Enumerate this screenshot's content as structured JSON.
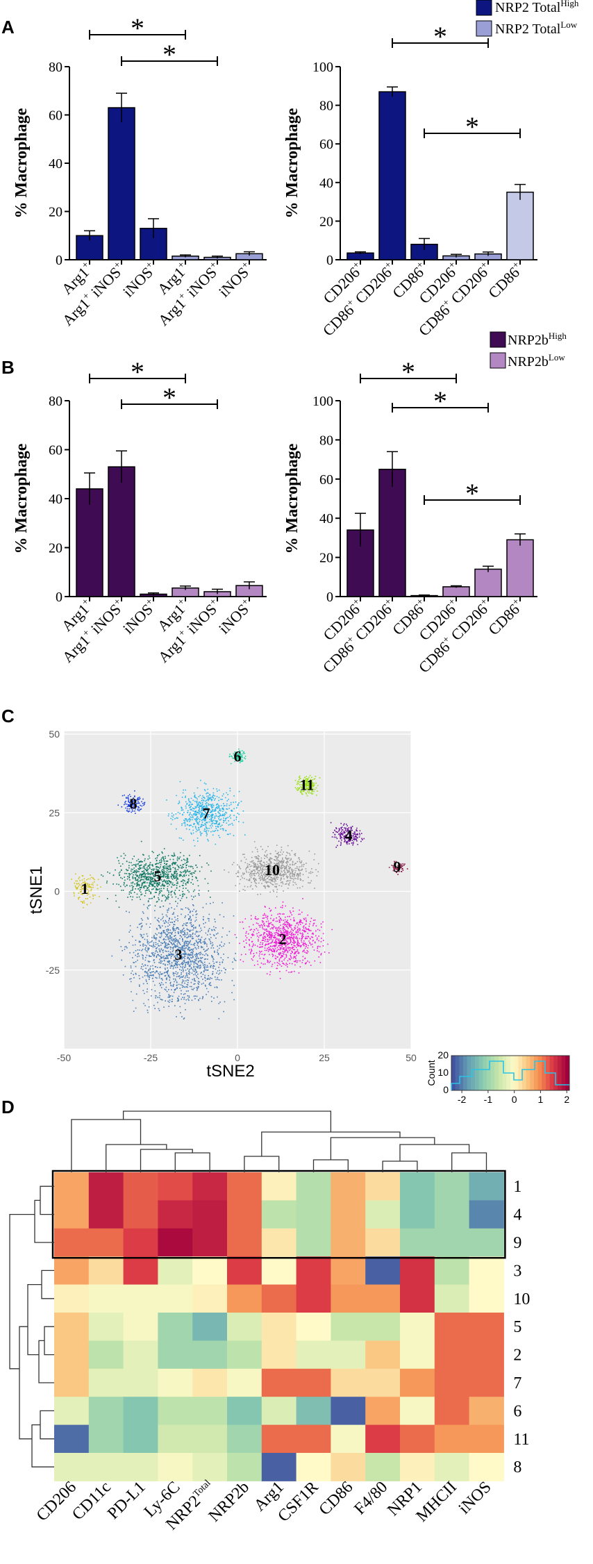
{
  "panel_labels": {
    "a": "A",
    "b": "B",
    "c": "C",
    "d": "D"
  },
  "colors": {
    "total_high": "#0d1680",
    "total_low": "#9a9fd6",
    "total_low_light": "#c5c9e8",
    "nrp2b_high": "#3f0c54",
    "nrp2b_low": "#b287c2"
  },
  "chart_data": [
    {
      "id": "A-left",
      "type": "bar",
      "ylabel": "% Macrophage",
      "ylim": [
        0,
        80
      ],
      "yticks": [
        "0",
        "20",
        "40",
        "60",
        "80"
      ],
      "categories": [
        {
          "pre": "Arg1",
          "sup": "+"
        },
        {
          "pre": "Arg1",
          "sup": "+",
          "post": " iNOS",
          "sup2": "+"
        },
        {
          "pre": "iNOS",
          "sup": "+"
        },
        {
          "pre": "Arg1",
          "sup": "+"
        },
        {
          "pre": "Arg1",
          "sup": "+",
          "post": " iNOS",
          "sup2": "+"
        },
        {
          "pre": "iNOS",
          "sup": "+"
        }
      ],
      "values": [
        10,
        63,
        13,
        1.5,
        1,
        2.5
      ],
      "errors": [
        2,
        6,
        4,
        0.5,
        0.5,
        0.8
      ],
      "groups": [
        "high",
        "high",
        "high",
        "low",
        "low",
        "low"
      ],
      "significance": [
        {
          "from": 0,
          "to": 3,
          "label": "*"
        },
        {
          "from": 1,
          "to": 4,
          "label": "*"
        }
      ]
    },
    {
      "id": "A-right",
      "type": "bar",
      "ylabel": "% Macrophage",
      "ylim": [
        0,
        100
      ],
      "yticks": [
        "0",
        "20",
        "40",
        "60",
        "80",
        "100"
      ],
      "categories": [
        {
          "pre": "CD206",
          "sup": "+"
        },
        {
          "pre": "CD86",
          "sup": "+",
          "post": " CD206",
          "sup2": "+"
        },
        {
          "pre": "CD86",
          "sup": "+"
        },
        {
          "pre": "CD206",
          "sup": "+"
        },
        {
          "pre": "CD86",
          "sup": "+",
          "post": " CD206",
          "sup2": "+"
        },
        {
          "pre": "CD86",
          "sup": "+"
        }
      ],
      "values": [
        3.5,
        87,
        8,
        2,
        3,
        35
      ],
      "errors": [
        0.6,
        2.5,
        3,
        0.8,
        1,
        4
      ],
      "groups": [
        "high",
        "high",
        "high",
        "low",
        "low",
        "lowlight"
      ],
      "significance": [
        {
          "from": 1,
          "to": 4,
          "label": "*"
        },
        {
          "from": 2,
          "to": 5,
          "label": "*"
        }
      ]
    },
    {
      "id": "B-left",
      "type": "bar",
      "ylabel": "% Macrophage",
      "ylim": [
        0,
        80
      ],
      "yticks": [
        "0",
        "20",
        "40",
        "60",
        "80"
      ],
      "categories": [
        {
          "pre": "Arg1",
          "sup": "+"
        },
        {
          "pre": "Arg1",
          "sup": "+",
          "post": " iNOS",
          "sup2": "+"
        },
        {
          "pre": "iNOS",
          "sup": "+"
        },
        {
          "pre": "Arg1",
          "sup": "+"
        },
        {
          "pre": "Arg1",
          "sup": "+",
          "post": " iNOS",
          "sup2": "+"
        },
        {
          "pre": "iNOS",
          "sup": "+"
        }
      ],
      "values": [
        44,
        53,
        1,
        3.5,
        2,
        4.5
      ],
      "errors": [
        6.5,
        6.5,
        0.5,
        0.8,
        1,
        1.5
      ],
      "groups": [
        "high",
        "high",
        "high",
        "low",
        "low",
        "low"
      ],
      "significance": [
        {
          "from": 0,
          "to": 3,
          "label": "*"
        },
        {
          "from": 1,
          "to": 4,
          "label": "*"
        }
      ]
    },
    {
      "id": "B-right",
      "type": "bar",
      "ylabel": "% Macrophage",
      "ylim": [
        0,
        100
      ],
      "yticks": [
        "0",
        "20",
        "40",
        "60",
        "80",
        "100"
      ],
      "categories": [
        {
          "pre": "CD206",
          "sup": "+"
        },
        {
          "pre": "CD86",
          "sup": "+",
          "post": " CD206",
          "sup2": "+"
        },
        {
          "pre": "CD86",
          "sup": "+"
        },
        {
          "pre": "CD206",
          "sup": "+"
        },
        {
          "pre": "CD86",
          "sup": "+",
          "post": " CD206",
          "sup2": "+"
        },
        {
          "pre": "CD86",
          "sup": "+"
        }
      ],
      "values": [
        34,
        65,
        0.5,
        5,
        14,
        29
      ],
      "errors": [
        8.5,
        9,
        0.3,
        0.5,
        1.5,
        3
      ],
      "groups": [
        "high",
        "high",
        "high",
        "low",
        "low",
        "low"
      ],
      "significance": [
        {
          "from": 0,
          "to": 3,
          "label": "*"
        },
        {
          "from": 1,
          "to": 4,
          "label": "*"
        },
        {
          "from": 2,
          "to": 5,
          "label": "*"
        }
      ]
    },
    {
      "id": "C",
      "type": "scatter",
      "xlabel": "tSNE2",
      "ylabel": "tSNE1",
      "xlim": [
        -50,
        50
      ],
      "ylim": [
        -50,
        50
      ],
      "xticks": [
        "-50",
        "-25",
        "0",
        "25",
        "50"
      ],
      "yticks": [
        "50",
        "25",
        "0",
        "-25"
      ],
      "clusters": [
        {
          "label": "1",
          "x": -44,
          "y": 1,
          "color": "#d4c41f"
        },
        {
          "label": "2",
          "x": 13,
          "y": -15,
          "color": "#f01cd6"
        },
        {
          "label": "3",
          "x": -17,
          "y": -20,
          "color": "#4a7db5"
        },
        {
          "label": "4",
          "x": 32,
          "y": 18,
          "color": "#6a0f9a"
        },
        {
          "label": "5",
          "x": -23,
          "y": 5,
          "color": "#117864"
        },
        {
          "label": "6",
          "x": 0,
          "y": 43,
          "color": "#1fd4a3"
        },
        {
          "label": "7",
          "x": -9,
          "y": 25,
          "color": "#2ab5ea"
        },
        {
          "label": "8",
          "x": -30,
          "y": 28,
          "color": "#1a3ee0"
        },
        {
          "label": "9",
          "x": 46,
          "y": 8,
          "color": "#8a1040"
        },
        {
          "label": "10",
          "x": 10,
          "y": 7,
          "color": "#9a9a9a"
        },
        {
          "label": "11",
          "x": 20,
          "y": 34,
          "color": "#9ce01a"
        }
      ]
    },
    {
      "id": "D",
      "type": "heatmap",
      "columns": [
        {
          "t": "CD206"
        },
        {
          "t": "CD11c"
        },
        {
          "t": "PD-L1"
        },
        {
          "t": "Ly-6C"
        },
        {
          "t": "NRP2",
          "sup": "Total"
        },
        {
          "t": "NRP2b"
        },
        {
          "t": "Arg1"
        },
        {
          "t": "CSF1R"
        },
        {
          "t": "CD86"
        },
        {
          "t": "F4/80"
        },
        {
          "t": "NRP1"
        },
        {
          "t": "MHCII"
        },
        {
          "t": "iNOS"
        }
      ],
      "rows": [
        "1",
        "4",
        "9",
        "3",
        "10",
        "5",
        "2",
        "7",
        "6",
        "11",
        "8"
      ],
      "values": [
        [
          0.8,
          1.8,
          1.3,
          1.4,
          1.7,
          1.2,
          0.1,
          -0.8,
          0.7,
          0.3,
          -1.3,
          -1.0,
          -1.6
        ],
        [
          0.8,
          1.8,
          1.3,
          1.7,
          1.8,
          1.2,
          -0.7,
          -0.8,
          0.7,
          -0.4,
          -1.3,
          -1.0,
          -2.0
        ],
        [
          1.2,
          1.2,
          1.5,
          2.0,
          1.8,
          1.2,
          0.2,
          -0.8,
          0.7,
          0.3,
          -1.0,
          -1.0,
          -1.0
        ],
        [
          0.8,
          0.3,
          1.5,
          -0.3,
          0.0,
          1.5,
          0.0,
          1.5,
          0.8,
          -2.3,
          1.6,
          -0.7,
          0.0
        ],
        [
          0.1,
          -0.1,
          -0.1,
          -0.1,
          0.1,
          0.9,
          1.2,
          1.5,
          0.9,
          0.9,
          1.6,
          -0.4,
          0.0
        ],
        [
          0.5,
          -0.3,
          -0.1,
          -1.0,
          -1.5,
          -0.4,
          0.2,
          0.0,
          -0.6,
          -0.6,
          -0.1,
          1.2,
          1.2
        ],
        [
          0.5,
          -0.7,
          -0.3,
          -1.0,
          -1.0,
          -0.7,
          0.2,
          -0.3,
          -0.3,
          0.5,
          -0.1,
          1.2,
          1.2
        ],
        [
          0.5,
          -0.3,
          -0.3,
          -0.1,
          0.2,
          -0.1,
          1.2,
          1.2,
          0.3,
          0.3,
          0.9,
          1.2,
          1.2
        ],
        [
          -0.3,
          -1.0,
          -1.3,
          -0.7,
          -0.7,
          -1.3,
          -0.4,
          -1.4,
          -2.3,
          0.8,
          -0.1,
          1.2,
          0.7
        ],
        [
          -2.2,
          -1.0,
          -1.3,
          -0.5,
          -0.5,
          -1.0,
          1.2,
          1.2,
          -0.1,
          1.5,
          1.2,
          0.9,
          0.9
        ],
        [
          -0.3,
          -0.3,
          -0.3,
          -0.1,
          -0.3,
          -0.7,
          -2.3,
          0.0,
          0.3,
          -0.6,
          0.1,
          -0.3,
          0.0
        ]
      ],
      "color_key": {
        "ticks": [
          "-2",
          "-1",
          "0",
          "1",
          "2"
        ],
        "count_label": "Count",
        "count_ticks": [
          "0",
          "10",
          "20"
        ],
        "range": [
          -2.4,
          2.1
        ]
      }
    }
  ],
  "legends": {
    "a_high": {
      "label": "NRP2 Total",
      "sup": "High"
    },
    "a_low": {
      "label": "NRP2 Total",
      "sup": "Low"
    },
    "b_high": {
      "label": "NRP2b",
      "sup": "High"
    },
    "b_low": {
      "label": "NRP2b",
      "sup": "Low"
    }
  }
}
